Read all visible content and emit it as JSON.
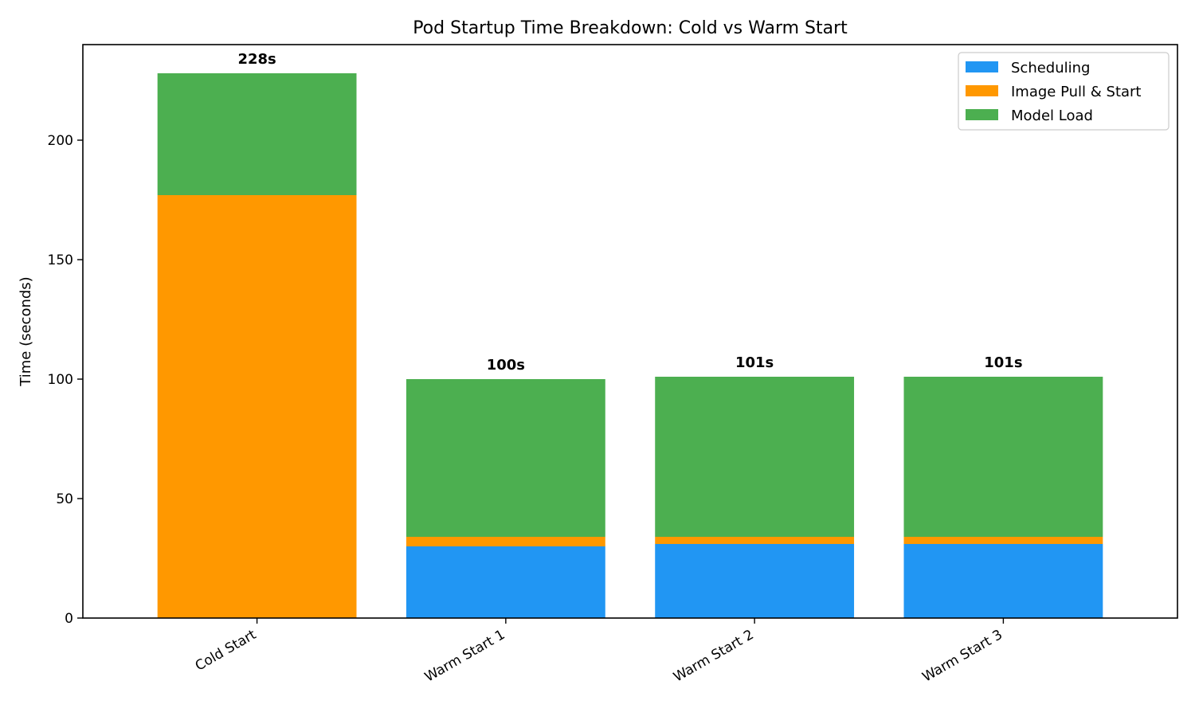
{
  "chart_data": {
    "type": "bar",
    "stacked": true,
    "title": "Pod Startup Time Breakdown: Cold vs Warm Start",
    "xlabel": "",
    "ylabel": "Time (seconds)",
    "ylim": [
      0,
      240
    ],
    "yticks": [
      0,
      50,
      100,
      150,
      200
    ],
    "categories": [
      "Cold Start",
      "Warm Start 1",
      "Warm Start 2",
      "Warm Start 3"
    ],
    "series": [
      {
        "name": "Scheduling",
        "color": "#2196F3",
        "values": [
          0,
          30,
          31,
          31
        ]
      },
      {
        "name": "Image Pull & Start",
        "color": "#FF9800",
        "values": [
          177,
          4,
          3,
          3
        ]
      },
      {
        "name": "Model Load",
        "color": "#4CAF50",
        "values": [
          51,
          66,
          67,
          67
        ]
      }
    ],
    "totals": [
      "228s",
      "100s",
      "101s",
      "101s"
    ],
    "grid": false,
    "legend_position": "top-right"
  }
}
